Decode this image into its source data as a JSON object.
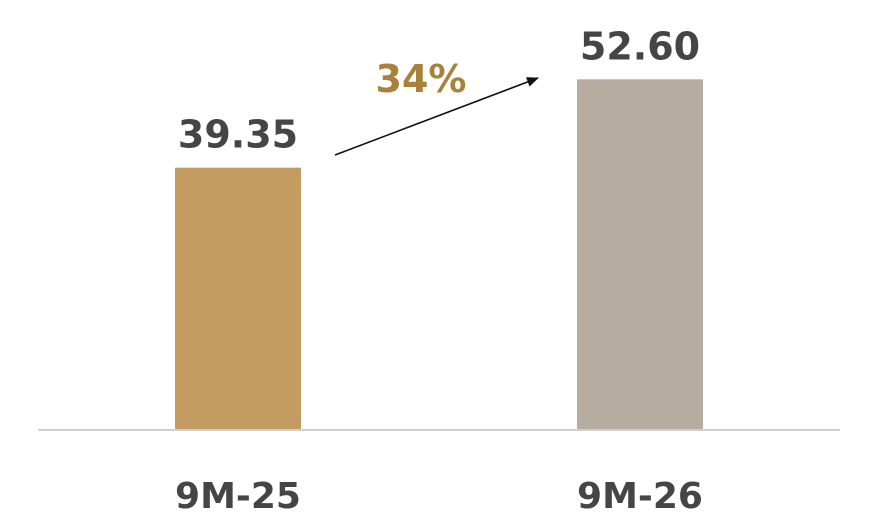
{
  "chart_data": {
    "type": "bar",
    "categories": [
      "9M-25",
      "9M-26"
    ],
    "values": [
      39.35,
      52.6
    ],
    "value_labels": [
      "39.35",
      "52.60"
    ],
    "bar_colors": [
      "#c49b60",
      "#b6ada0"
    ],
    "ylim": [
      0,
      60
    ],
    "grid": false,
    "title": "",
    "xlabel": "",
    "ylabel": "",
    "annotation": {
      "text": "34%",
      "color": "#a8813a",
      "arrow": "from bar 1 to bar 2"
    }
  }
}
